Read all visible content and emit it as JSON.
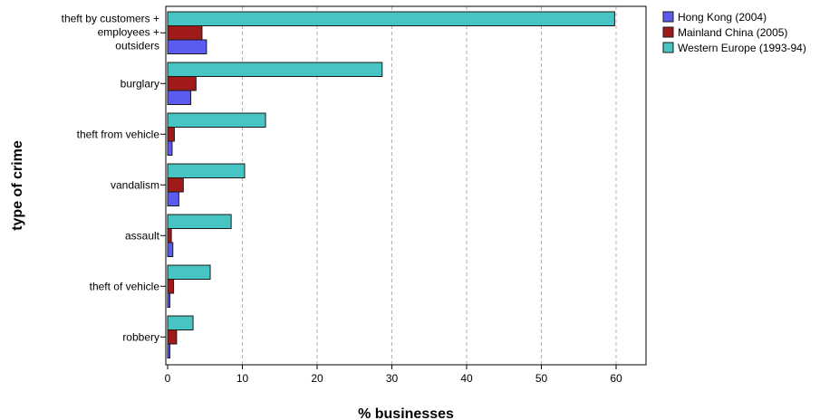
{
  "chart_data": {
    "type": "bar",
    "orientation": "horizontal",
    "title": "",
    "xlabel": "% businesses",
    "ylabel": "type of crime",
    "xlim": [
      0,
      64
    ],
    "xticks": [
      0,
      10,
      20,
      30,
      40,
      50,
      60
    ],
    "grid": "vertical dashed",
    "legend_position": "right",
    "categories": [
      [
        "theft by customers +",
        "employees +",
        "outsiders"
      ],
      [
        "burglary"
      ],
      [
        "theft from vehicle"
      ],
      [
        "vandalism"
      ],
      [
        "assault"
      ],
      [
        "theft of vehicle"
      ],
      [
        "robbery"
      ]
    ],
    "series": [
      {
        "name": "Hong Kong (2004)",
        "color": "#5b5bf0",
        "values": [
          5.2,
          3.1,
          0.6,
          1.5,
          0.7,
          0.3,
          0.3
        ]
      },
      {
        "name": "Mainland China (2005)",
        "color": "#a01a1a",
        "values": [
          4.6,
          3.8,
          0.9,
          2.1,
          0.5,
          0.8,
          1.2
        ]
      },
      {
        "name": "Western Europe (1993-94)",
        "color": "#48c4c4",
        "values": [
          59.8,
          28.7,
          13.1,
          10.3,
          8.5,
          5.7,
          3.4
        ]
      }
    ]
  }
}
